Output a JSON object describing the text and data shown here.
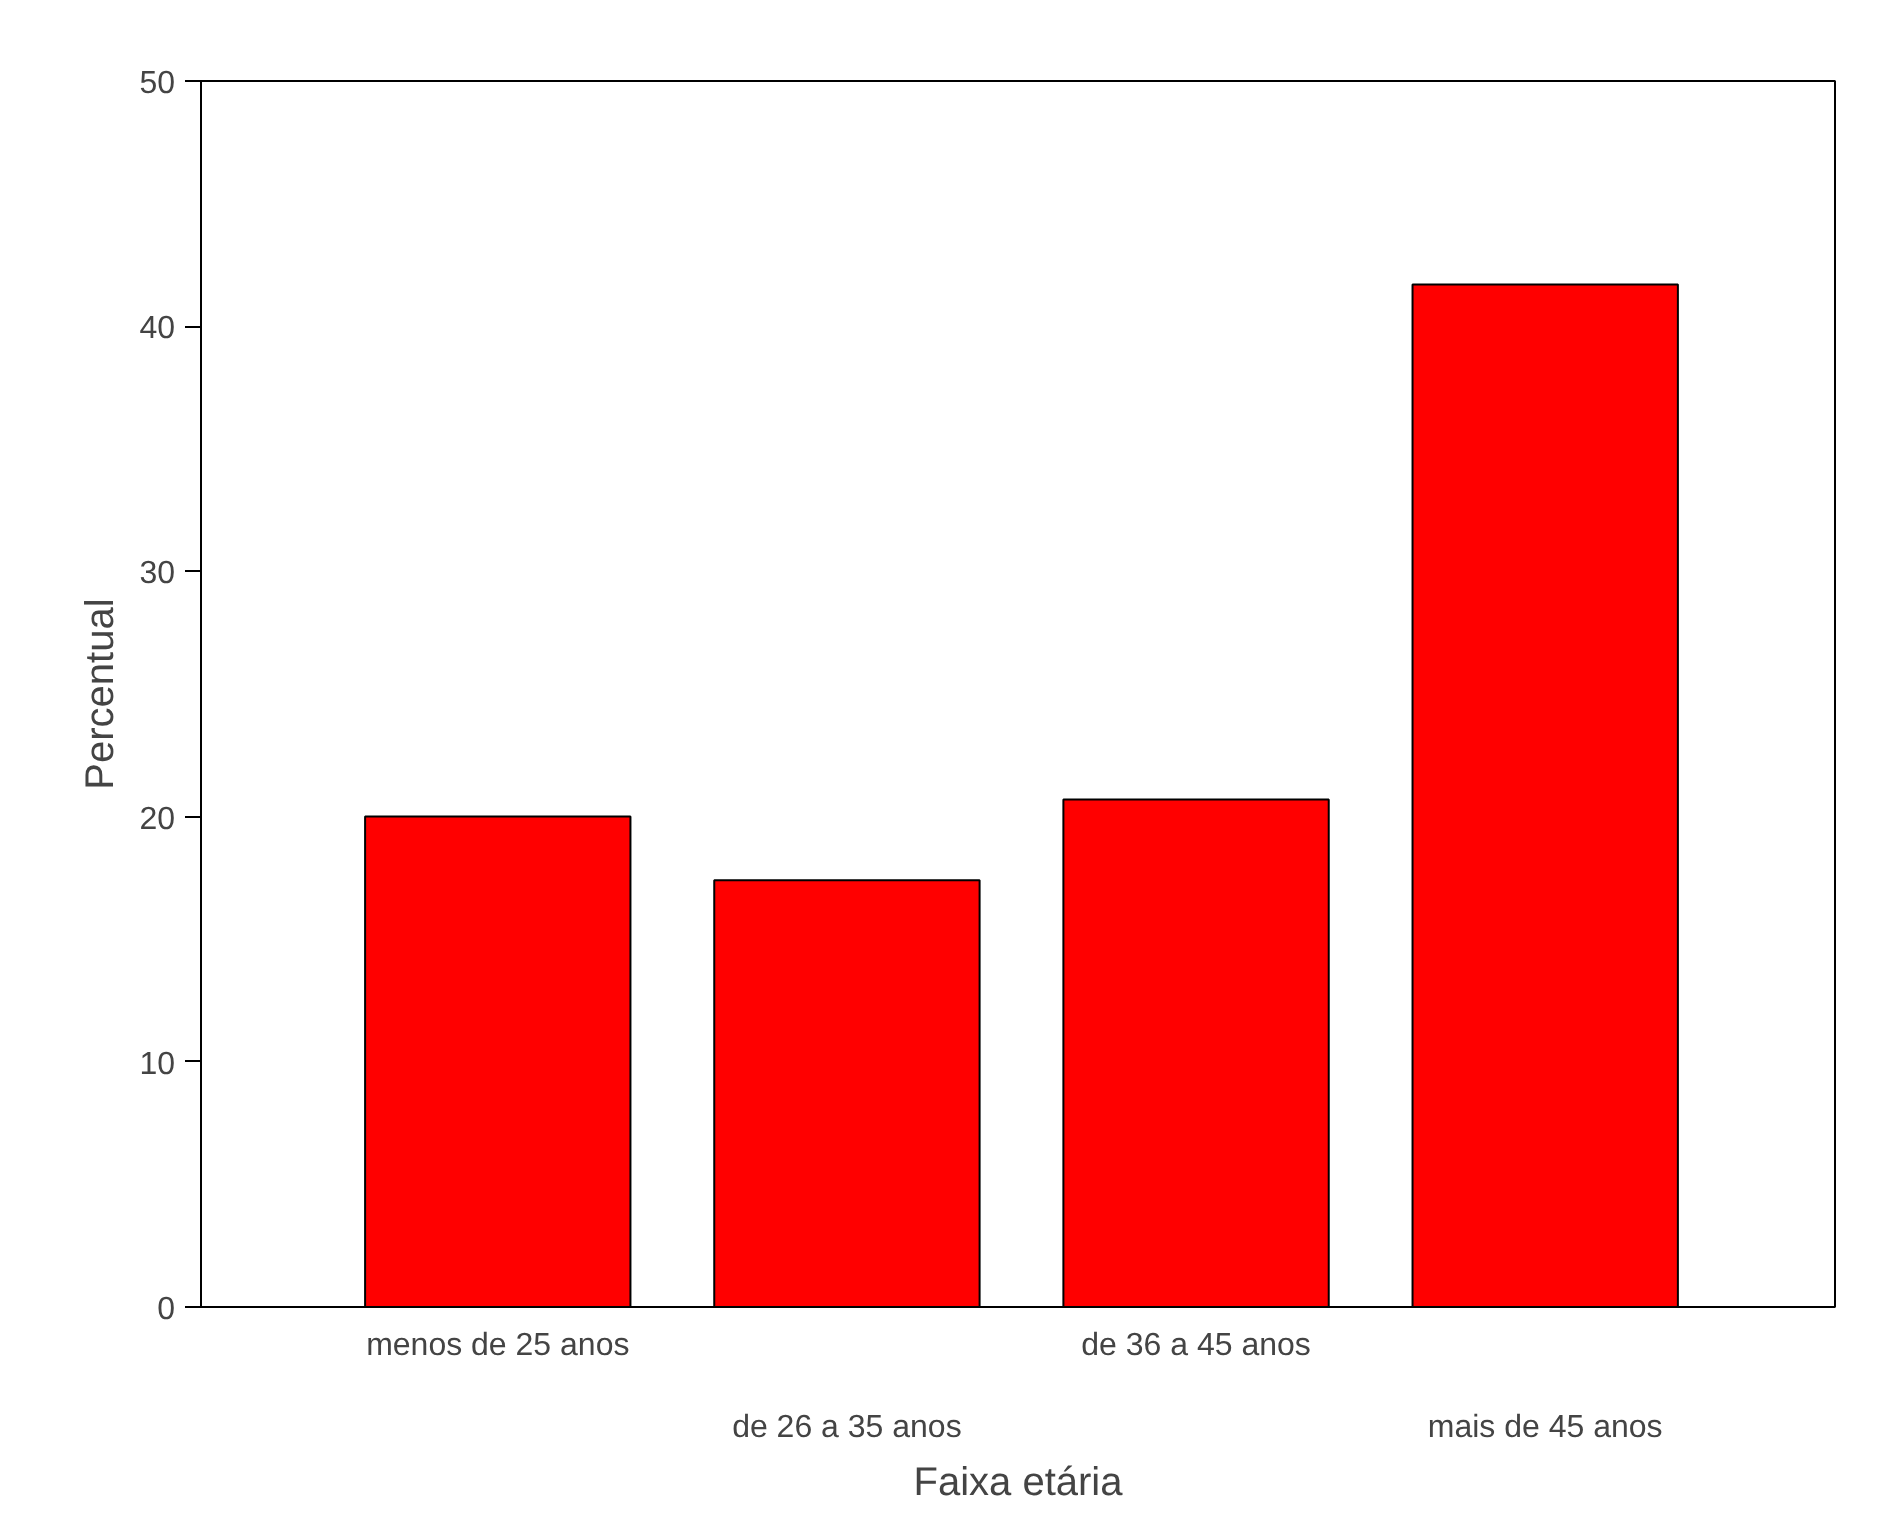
{
  "chart_data": {
    "type": "bar",
    "xlabel": "Faixa etária",
    "ylabel": "Percentual",
    "categories": [
      "menos de 25 anos",
      "de 26 a 35 anos",
      "de 36 a 45 anos",
      "mais de 45 anos"
    ],
    "values": [
      20.0,
      17.4,
      20.7,
      41.7
    ],
    "color": "#ff0000",
    "ylim": [
      0,
      50
    ],
    "yticks": [
      0,
      10,
      20,
      30,
      40,
      50
    ],
    "grid": false
  }
}
